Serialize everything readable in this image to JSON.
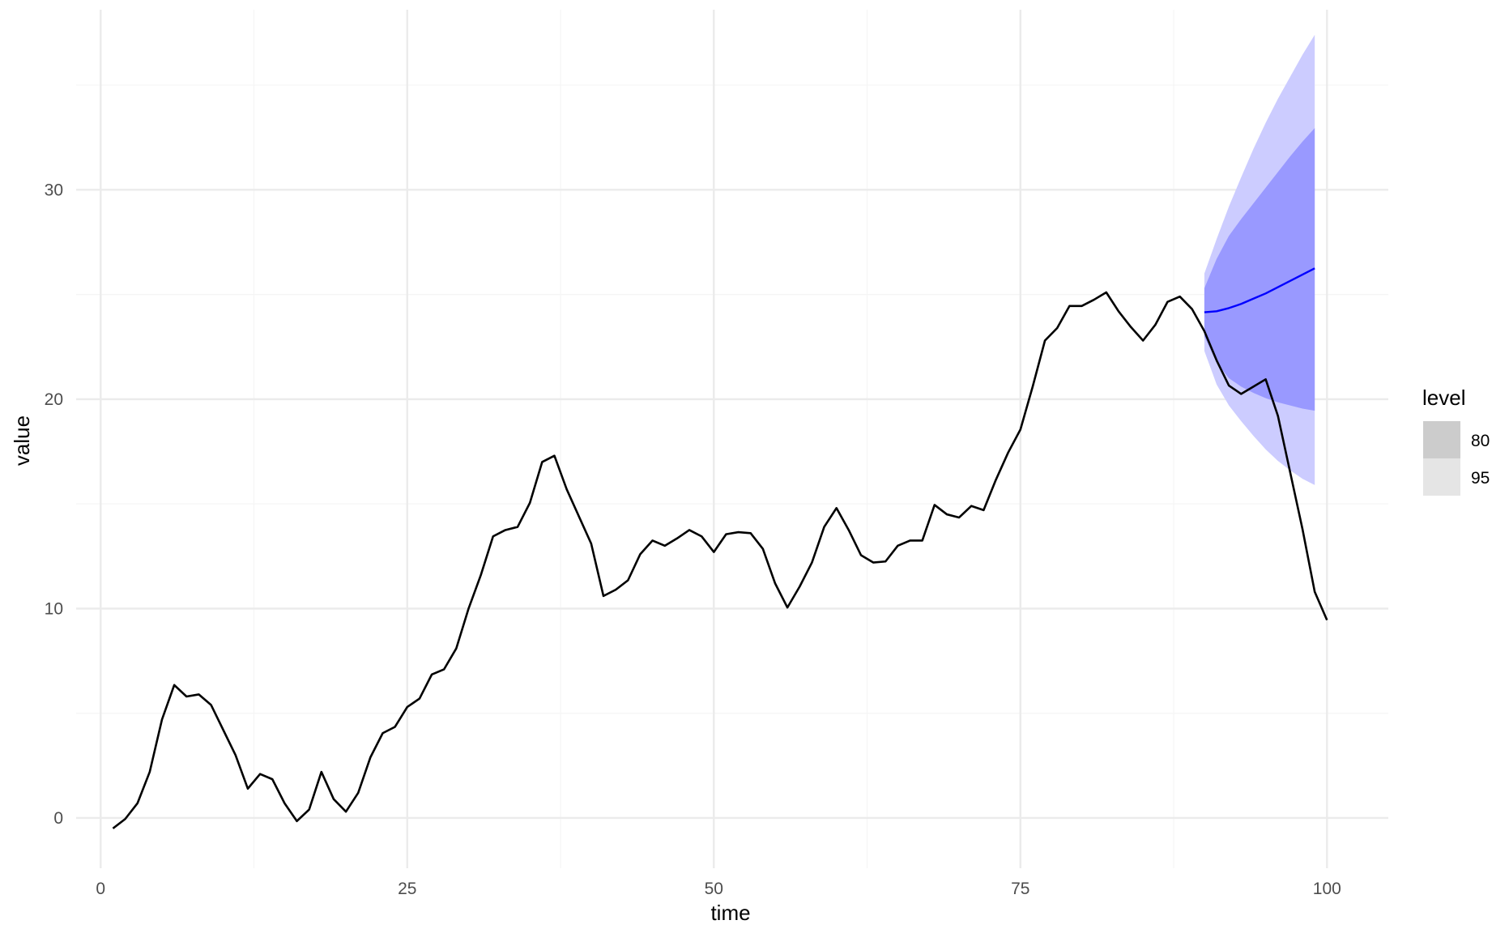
{
  "chart_data": {
    "type": "line",
    "xlabel": "time",
    "ylabel": "value",
    "xlim": [
      -2,
      105
    ],
    "ylim": [
      -2.4,
      38.6
    ],
    "x_ticks": [
      0,
      25,
      50,
      75,
      100
    ],
    "y_ticks": [
      0,
      10,
      20,
      30
    ],
    "x_minor": [
      12.5,
      37.5,
      62.5,
      87.5
    ],
    "y_minor": [
      5,
      15,
      25,
      35
    ],
    "grid": true,
    "observed": {
      "x": [
        1,
        2,
        3,
        4,
        5,
        6,
        7,
        8,
        9,
        10,
        11,
        12,
        13,
        14,
        15,
        16,
        17,
        18,
        19,
        20,
        21,
        22,
        23,
        24,
        25,
        26,
        27,
        28,
        29,
        30,
        31,
        32,
        33,
        34,
        35,
        36,
        37,
        38,
        39,
        40,
        41,
        42,
        43,
        44,
        45,
        46,
        47,
        48,
        49,
        50,
        51,
        52,
        53,
        54,
        55,
        56,
        57,
        58,
        59,
        60,
        61,
        62,
        63,
        64,
        65,
        66,
        67,
        68,
        69,
        70,
        71,
        72,
        73,
        74,
        75,
        76,
        77,
        78,
        79,
        80,
        81,
        82,
        83,
        84,
        85,
        86,
        87,
        88,
        89,
        90,
        91,
        92,
        93,
        94,
        95,
        96,
        97,
        98,
        99,
        100
      ],
      "values": [
        -0.5,
        -0.05,
        0.7,
        2.2,
        4.7,
        6.35,
        5.8,
        5.9,
        5.4,
        4.2,
        3.0,
        1.4,
        2.1,
        1.85,
        0.7,
        -0.15,
        0.4,
        2.2,
        0.9,
        0.3,
        1.2,
        2.9,
        4.05,
        4.35,
        5.3,
        5.7,
        6.85,
        7.1,
        8.1,
        10.0,
        11.6,
        13.45,
        13.75,
        13.9,
        15.05,
        17.0,
        17.3,
        15.7,
        14.4,
        13.1,
        10.6,
        10.9,
        11.35,
        12.6,
        13.25,
        13.0,
        13.35,
        13.75,
        13.45,
        12.7,
        13.55,
        13.65,
        13.6,
        12.85,
        11.2,
        10.05,
        11.05,
        12.2,
        13.9,
        14.8,
        13.75,
        12.55,
        12.2,
        12.25,
        13.0,
        13.25,
        13.25,
        14.95,
        14.5,
        14.35,
        14.9,
        14.7,
        16.15,
        17.45,
        18.55,
        20.6,
        22.8,
        23.4,
        24.45,
        24.45,
        24.75,
        25.1,
        24.2,
        23.45,
        22.8,
        23.55,
        24.65,
        24.9,
        24.3,
        23.25,
        21.85,
        20.65,
        20.25,
        20.6,
        20.95,
        19.2,
        16.5,
        13.8,
        10.8,
        9.45
      ]
    },
    "forecast": {
      "x": [
        90,
        91,
        92,
        93,
        94,
        95,
        96,
        97,
        98,
        99
      ],
      "mean": [
        24.15,
        24.2,
        24.35,
        24.55,
        24.8,
        25.05,
        25.35,
        25.65,
        25.95,
        26.25
      ],
      "lower_80": [
        23.0,
        21.75,
        21.0,
        20.6,
        20.3,
        20.05,
        19.85,
        19.7,
        19.55,
        19.45
      ],
      "upper_80": [
        25.3,
        26.7,
        27.8,
        28.6,
        29.35,
        30.1,
        30.85,
        31.6,
        32.3,
        32.95
      ],
      "lower_95": [
        22.3,
        20.7,
        19.7,
        18.95,
        18.25,
        17.6,
        17.05,
        16.6,
        16.2,
        15.9
      ],
      "upper_95": [
        26.0,
        27.65,
        29.2,
        30.6,
        31.95,
        33.2,
        34.35,
        35.4,
        36.45,
        37.4
      ]
    },
    "colors": {
      "observed": "#000000",
      "forecast_line": "#0000ff",
      "band_80": "#9999ff",
      "band_95": "#ccccff",
      "legend_80": "#cccccc",
      "legend_95": "#e5e5e5",
      "grid_major": "#ebebeb",
      "grid_minor": "#f5f5f5"
    },
    "legend": {
      "title": "level",
      "position": "right",
      "entries": [
        "80",
        "95"
      ]
    }
  }
}
